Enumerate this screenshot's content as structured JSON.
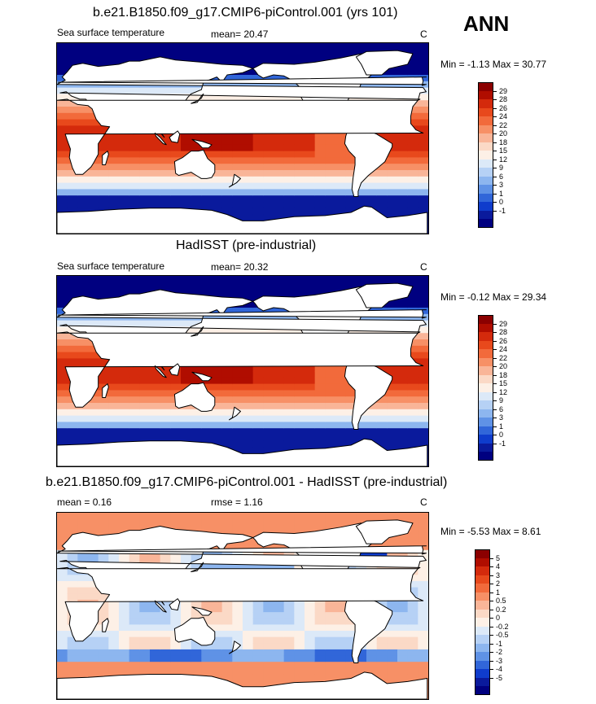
{
  "season_label": "ANN",
  "panels": [
    {
      "title": "b.e21.B1850.f09_g17.CMIP6-piControl.001 (yrs 101)",
      "left_label": "Sea surface temperature",
      "mid_label": "mean=  20.47",
      "units": "C",
      "minmax": "Min =  -1.13 Max =  30.77",
      "colorbar": {
        "labels": [
          "29",
          "28",
          "26",
          "24",
          "22",
          "20",
          "18",
          "15",
          "12",
          "9",
          "6",
          "3",
          "1",
          "0",
          "-1"
        ],
        "colors": [
          "#8b0000",
          "#b00d00",
          "#d42a0c",
          "#e8491c",
          "#f26a3b",
          "#f79066",
          "#f9b598",
          "#fbd9c6",
          "#fdf0e6",
          "#dce9f8",
          "#b6d1f5",
          "#8db6ef",
          "#5f92e6",
          "#3166d9",
          "#0f3ccc",
          "#0a1a9c",
          "#000080"
        ]
      },
      "field": "abs"
    },
    {
      "title": "HadISST (pre-industrial)",
      "left_label": "Sea surface temperature",
      "mid_label": "mean=  20.32",
      "units": "C",
      "minmax": "Min =  -0.12 Max =  29.34",
      "colorbar": {
        "labels": [
          "29",
          "28",
          "26",
          "24",
          "22",
          "20",
          "18",
          "15",
          "12",
          "9",
          "6",
          "3",
          "1",
          "0",
          "-1"
        ],
        "colors": [
          "#8b0000",
          "#b00d00",
          "#d42a0c",
          "#e8491c",
          "#f26a3b",
          "#f79066",
          "#f9b598",
          "#fbd9c6",
          "#fdf0e6",
          "#dce9f8",
          "#b6d1f5",
          "#8db6ef",
          "#5f92e6",
          "#3166d9",
          "#0f3ccc",
          "#0a1a9c",
          "#000080"
        ]
      },
      "field": "obs"
    },
    {
      "title": "b.e21.B1850.f09_g17.CMIP6-piControl.001 - HadISST (pre-industrial)",
      "left_label": "mean =   0.16",
      "mid_label": "rmse =   1.16",
      "units": "C",
      "minmax": "Min =  -5.53 Max =   8.61",
      "colorbar": {
        "labels": [
          "5",
          "4",
          "3",
          "2",
          "1",
          "0.5",
          "0.2",
          "0",
          "-0.2",
          "-0.5",
          "-1",
          "-2",
          "-3",
          "-4",
          "-5"
        ],
        "colors": [
          "#8b0000",
          "#b00d00",
          "#d42a0c",
          "#e8491c",
          "#f26a3b",
          "#f79066",
          "#f9b598",
          "#fbd9c6",
          "#fdf0e6",
          "#dce9f8",
          "#b6d1f5",
          "#8db6ef",
          "#5f92e6",
          "#3166d9",
          "#0f3ccc",
          "#0a1a9c",
          "#000080"
        ]
      },
      "field": "diff"
    }
  ]
}
